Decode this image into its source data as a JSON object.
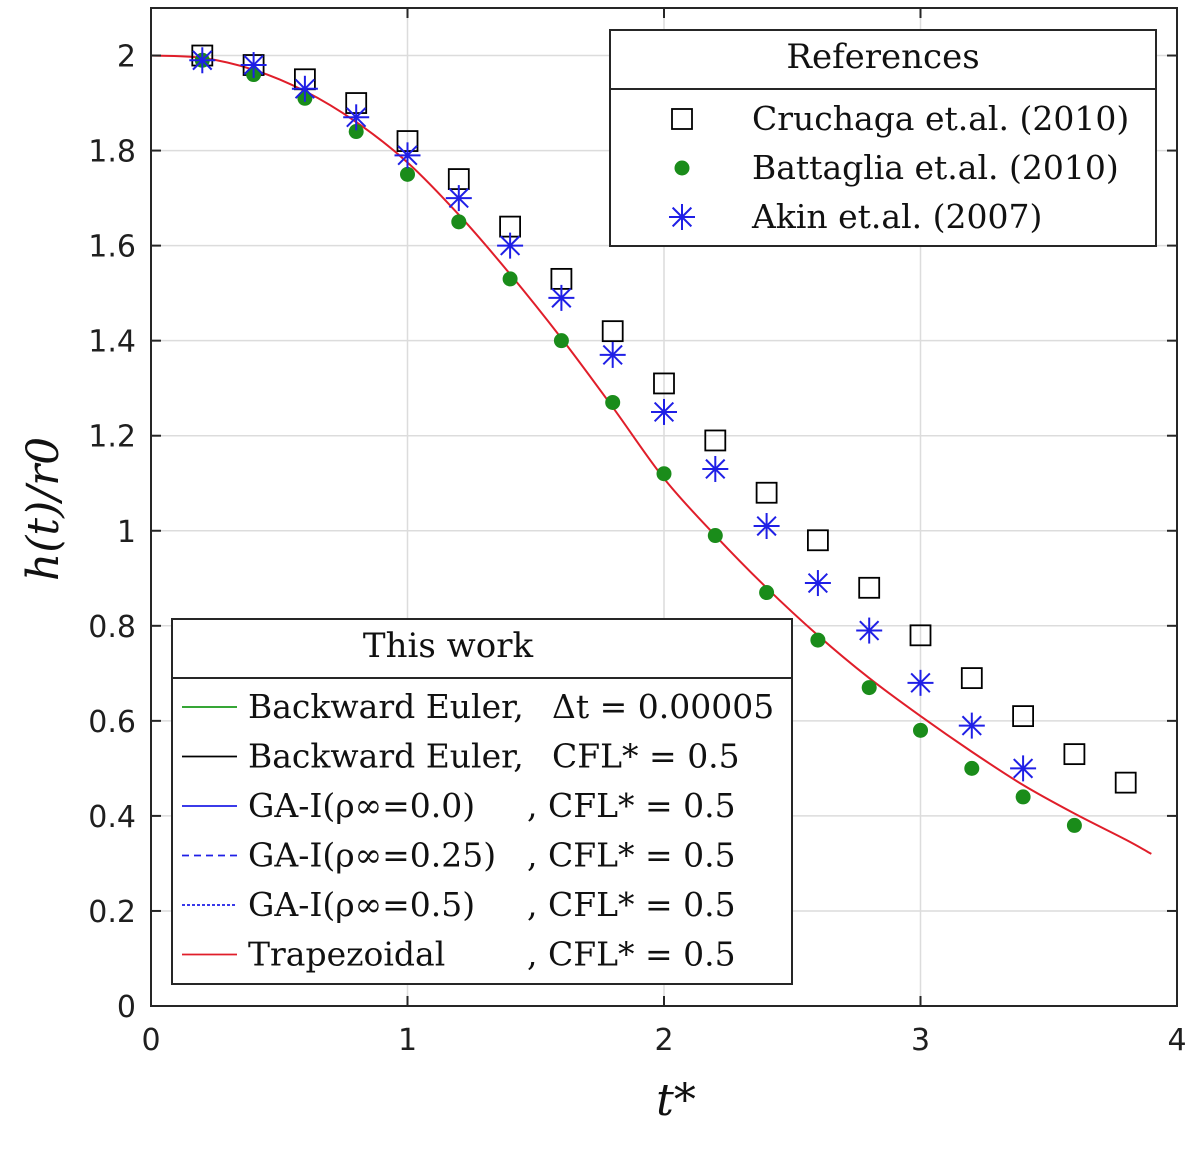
{
  "chart_data": {
    "type": "scatter",
    "xlabel": "t*",
    "ylabel": "h(t)/r0",
    "xlim": [
      0,
      4
    ],
    "ylim": [
      0,
      2.1
    ],
    "xticks": [
      "0",
      "1",
      "2",
      "3",
      "4"
    ],
    "yticks": [
      "0",
      "0.2",
      "0.4",
      "0.6",
      "0.8",
      "1",
      "1.2",
      "1.4",
      "1.6",
      "1.8",
      "2"
    ],
    "grid": true,
    "references_legend": {
      "title": "References",
      "position": "top-right",
      "entries": [
        "Cruchaga et.al. (2010)",
        "Battaglia et.al. (2010)",
        "Akin et.al. (2007)"
      ]
    },
    "this_work_legend": {
      "title": "This work",
      "position": "bottom-left",
      "entries": [
        {
          "method": "Backward Euler,",
          "param": "Δt = 0.00005",
          "color": "#1a9a1a",
          "dash": "solid"
        },
        {
          "method": "Backward Euler,",
          "param": "CFL* = 0.5",
          "color": "#000000",
          "dash": "solid"
        },
        {
          "method": "GA-I(ρ∞=0.0)",
          "param": ", CFL* = 0.5",
          "color": "#1f1fe6",
          "dash": "solid"
        },
        {
          "method": "GA-I(ρ∞=0.25)",
          "param": ", CFL* = 0.5",
          "color": "#1f1fe6",
          "dash": "dashed"
        },
        {
          "method": "GA-I(ρ∞=0.5)",
          "param": ", CFL* = 0.5",
          "color": "#1f1fe6",
          "dash": "dotted"
        },
        {
          "method": "Trapezoidal",
          "param": ", CFL* = 0.5",
          "color": "#e01e2a",
          "dash": "solid"
        }
      ]
    },
    "series": [
      {
        "name": "Cruchaga et.al. (2010)",
        "marker": "square",
        "color": "#000000",
        "x": [
          0.2,
          0.4,
          0.6,
          0.8,
          1.0,
          1.2,
          1.4,
          1.6,
          1.8,
          2.0,
          2.2,
          2.4,
          2.6,
          2.8,
          3.0,
          3.2,
          3.4,
          3.6,
          3.8
        ],
        "y": [
          2.0,
          1.98,
          1.95,
          1.9,
          1.82,
          1.74,
          1.64,
          1.53,
          1.42,
          1.31,
          1.19,
          1.08,
          0.98,
          0.88,
          0.78,
          0.69,
          0.61,
          0.53,
          0.47
        ]
      },
      {
        "name": "Battaglia et.al. (2010)",
        "marker": "dot",
        "color": "#1a8c1a",
        "x": [
          0.2,
          0.4,
          0.6,
          0.8,
          1.0,
          1.2,
          1.4,
          1.6,
          1.8,
          2.0,
          2.2,
          2.4,
          2.6,
          2.8,
          3.0,
          3.2,
          3.4,
          3.6
        ],
        "y": [
          1.99,
          1.96,
          1.91,
          1.84,
          1.75,
          1.65,
          1.53,
          1.4,
          1.27,
          1.12,
          0.99,
          0.87,
          0.77,
          0.67,
          0.58,
          0.5,
          0.44,
          0.38
        ]
      },
      {
        "name": "Akin et.al. (2007)",
        "marker": "asterisk",
        "color": "#1f1fe6",
        "x": [
          0.2,
          0.4,
          0.6,
          0.8,
          1.0,
          1.2,
          1.4,
          1.6,
          1.8,
          2.0,
          2.2,
          2.4,
          2.6,
          2.8,
          3.0,
          3.2,
          3.4
        ],
        "y": [
          1.99,
          1.98,
          1.93,
          1.87,
          1.79,
          1.7,
          1.6,
          1.49,
          1.37,
          1.25,
          1.13,
          1.01,
          0.89,
          0.79,
          0.68,
          0.59,
          0.5
        ]
      },
      {
        "name": "Trapezoidal, CFL* = 0.5",
        "marker": "line",
        "color": "#e01e2a",
        "x": [
          0,
          0.2,
          0.4,
          0.6,
          0.8,
          1.0,
          1.2,
          1.4,
          1.6,
          1.8,
          2.0,
          2.2,
          2.4,
          2.6,
          2.8,
          3.0,
          3.2,
          3.4,
          3.6,
          3.8,
          3.9
        ],
        "y": [
          2.0,
          1.995,
          1.97,
          1.925,
          1.86,
          1.775,
          1.665,
          1.54,
          1.405,
          1.26,
          1.11,
          0.99,
          0.88,
          0.78,
          0.69,
          0.61,
          0.535,
          0.465,
          0.405,
          0.35,
          0.32
        ]
      }
    ]
  }
}
